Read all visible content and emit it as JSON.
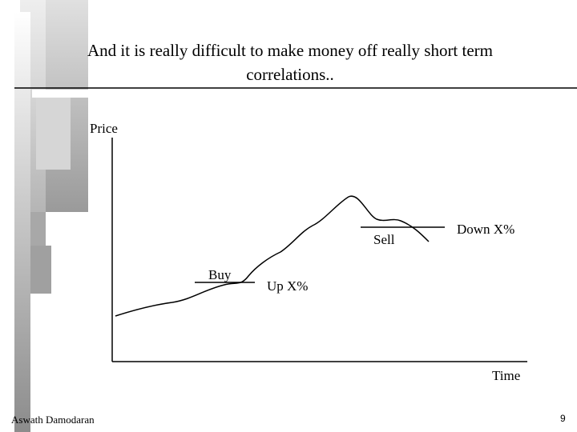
{
  "header": {
    "title": "And it is really difficult to make money off really short term correlations.."
  },
  "diagram": {
    "y_axis_label": "Price",
    "x_axis_label": "Time",
    "buy_label": "Buy",
    "up_label": "Up X%",
    "sell_label": "Sell",
    "down_label": "Down X%"
  },
  "footer": {
    "author": "Aswath Damodaran",
    "page": "9"
  }
}
